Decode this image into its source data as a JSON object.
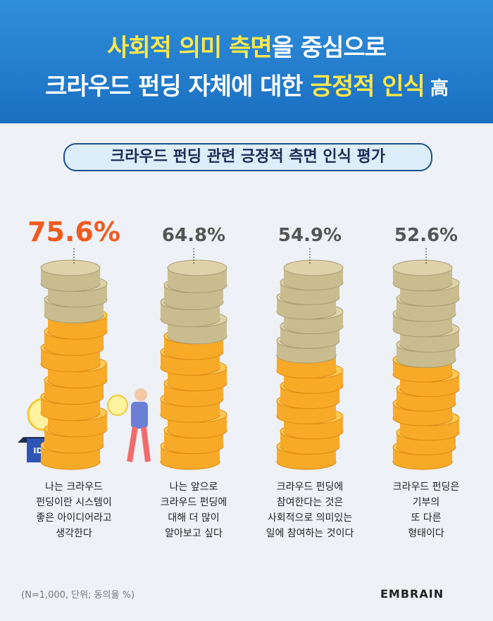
{
  "title_line1": [
    "사회적 의미 측면",
    "을 중심으로"
  ],
  "title_line2": [
    "크라우드 펀딩 자체에 대한 ",
    "긍정적 인식",
    " 高"
  ],
  "chart_data": {
    "type": "coin-stack",
    "subtitle": "크라우드 펀딩 관련 긍정적 측면 인식 평가",
    "categories": [
      "나는 크라우드\n펀딩이란 시스템이\n좋은 아이디어라고\n생각한다",
      "나는 앞으로\n크라우드 펀딩에\n대해 더 많이\n알아보고 싶다",
      "크라우드 펀딩에\n참여한다는 것은\n사회적으로 의미있는\n일에 참여하는 것이다",
      "크라우드 펀딩은\n기부의\n또 다른\n형태이다"
    ],
    "values": [
      75.6,
      64.8,
      54.9,
      52.6
    ],
    "value_labels": [
      "75.6%",
      "64.8%",
      "54.9%",
      "52.6%"
    ],
    "label_colors": [
      "#f05a1e",
      "#555555",
      "#555555",
      "#555555"
    ],
    "color": "#f7a928",
    "note": "(N=1,000, 단위; 동의율 %)"
  },
  "illustration_text": "IDEA",
  "brand": "EMBRAIN"
}
